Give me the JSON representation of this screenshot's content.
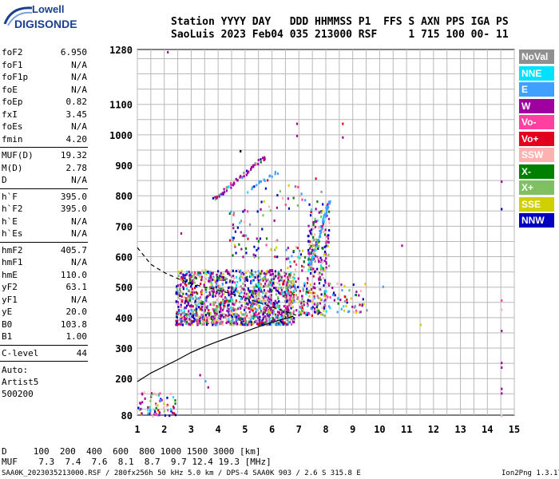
{
  "logo": {
    "top": "Lowell",
    "bottom": "DIGISONDE"
  },
  "header": {
    "line1": "Station YYYY DAY   DDD HHMMSS P1  FFS S AXN PPS IGA PS",
    "line2": "SaoLuis 2023 Feb04 035 213000 RSF     1 715 100 00- 11"
  },
  "params": {
    "g1": [
      {
        "name": "foF2",
        "value": "6.950"
      },
      {
        "name": "foF1",
        "value": "N/A"
      },
      {
        "name": "foF1p",
        "value": "N/A"
      },
      {
        "name": "foE",
        "value": "N/A"
      },
      {
        "name": "foEp",
        "value": "0.82"
      },
      {
        "name": "fxI",
        "value": "3.45"
      },
      {
        "name": "foEs",
        "value": "N/A"
      },
      {
        "name": "fmin",
        "value": "4.20"
      }
    ],
    "g2": [
      {
        "name": "MUF(D)",
        "value": "19.32"
      },
      {
        "name": "M(D)",
        "value": "2.78"
      },
      {
        "name": "D",
        "value": "N/A"
      }
    ],
    "g3": [
      {
        "name": "h`F",
        "value": "395.0"
      },
      {
        "name": "h`F2",
        "value": "395.0"
      },
      {
        "name": "h`E",
        "value": "N/A"
      },
      {
        "name": "h`Es",
        "value": "N/A"
      }
    ],
    "g4": [
      {
        "name": "hmF2",
        "value": "405.7"
      },
      {
        "name": "hmF1",
        "value": "N/A"
      },
      {
        "name": "hmE",
        "value": "110.0"
      },
      {
        "name": "yF2",
        "value": "63.1"
      },
      {
        "name": "yF1",
        "value": "N/A"
      },
      {
        "name": "yE",
        "value": "20.0"
      },
      {
        "name": "B0",
        "value": "103.8"
      },
      {
        "name": "B1",
        "value": "1.00"
      }
    ],
    "g5": [
      {
        "name": "C-level",
        "value": "44"
      }
    ]
  },
  "auto": {
    "line1": "Auto:",
    "line2": "Artist5",
    "line3": "500200"
  },
  "legend": [
    {
      "label": "NoVal",
      "color": "#909090"
    },
    {
      "label": "NNE",
      "color": "#00e0ff"
    },
    {
      "label": "E",
      "color": "#40a0ff"
    },
    {
      "label": "W",
      "color": "#a000a0"
    },
    {
      "label": "Vo-",
      "color": "#ff40a0"
    },
    {
      "label": "Vo+",
      "color": "#e00020"
    },
    {
      "label": "SSW",
      "color": "#ffb0b0"
    },
    {
      "label": "X-",
      "color": "#008000"
    },
    {
      "label": "X+",
      "color": "#80c060"
    },
    {
      "label": "SSE",
      "color": "#d0d000"
    },
    {
      "label": "NNW",
      "color": "#0000c0"
    }
  ],
  "footer": {
    "d_line": "D     100  200  400  600  800 1000 1500 3000 [km]",
    "muf_line": "MUF    7.3  7.4  7.6  8.1  8.7  9.7 12.4 19.3 [MHz]",
    "bottom_left": "SAA0K_2023035213000.RSF / 280fx256h 50 kHz 5.0 km / DPS-4 SAA0K 903 / 2.6 S 315.8 E",
    "bottom_right": "Ion2Png 1.3.17"
  },
  "chart_data": {
    "type": "scatter",
    "title": "",
    "xlabel": "",
    "ylabel": "",
    "xlim": [
      1,
      15
    ],
    "ylim": [
      80,
      1280
    ],
    "x_ticks": [
      "1",
      "2",
      "3",
      "4",
      "5",
      "6",
      "7",
      "8",
      "9",
      "10",
      "11",
      "12",
      "13",
      "14",
      "15"
    ],
    "y_ticks": [
      "80",
      "200",
      "300",
      "400",
      "500",
      "600",
      "700",
      "800",
      "900",
      "1000",
      "1100",
      "1280"
    ],
    "series": [
      {
        "color": "#000000",
        "style": "solid",
        "points": [
          [
            1.0,
            190
          ],
          [
            1.5,
            218
          ],
          [
            2.0,
            240
          ],
          [
            2.5,
            262
          ],
          [
            3.0,
            286
          ],
          [
            3.5,
            305
          ],
          [
            4.0,
            322
          ],
          [
            4.5,
            338
          ],
          [
            5.0,
            354
          ],
          [
            5.5,
            370
          ],
          [
            6.0,
            385
          ],
          [
            6.5,
            397
          ],
          [
            6.8,
            405
          ]
        ]
      },
      {
        "color": "#000000",
        "style": "dashed",
        "points": [
          [
            1.0,
            630
          ],
          [
            1.5,
            575
          ],
          [
            2.0,
            548
          ],
          [
            2.5,
            528
          ],
          [
            3.0,
            512
          ],
          [
            3.5,
            500
          ],
          [
            4.0,
            490
          ],
          [
            4.5,
            478
          ],
          [
            5.0,
            465
          ],
          [
            5.5,
            450
          ],
          [
            6.0,
            435
          ],
          [
            6.5,
            420
          ],
          [
            6.9,
            408
          ]
        ]
      }
    ],
    "echo_clusters": [
      {
        "x": [
          2.4,
          6.8
        ],
        "y": [
          380,
          560
        ],
        "density": 1400
      },
      {
        "x": [
          6.5,
          8.0
        ],
        "y": [
          410,
          640
        ],
        "density": 160
      },
      {
        "x": [
          7.0,
          9.5
        ],
        "y": [
          420,
          520
        ],
        "density": 110
      },
      {
        "x": [
          7.3,
          8.1
        ],
        "y": [
          560,
          780
        ],
        "density": 120
      },
      {
        "x": [
          4.4,
          6.2
        ],
        "y": [
          600,
          760
        ],
        "density": 60
      },
      {
        "x": [
          1.0,
          2.4
        ],
        "y": [
          80,
          160
        ],
        "density": 70
      },
      {
        "x": [
          5.0,
          7.9
        ],
        "y": [
          760,
          840
        ],
        "density": 25
      }
    ],
    "echo_traces": [
      {
        "x": [
          3.8,
          5.7
        ],
        "y": [
          790,
          930
        ],
        "n": 60,
        "color": "#a000a0"
      },
      {
        "x": [
          5.2,
          6.2
        ],
        "y": [
          830,
          880
        ],
        "n": 16,
        "color": "#40a0ff"
      },
      {
        "x": [
          7.4,
          8.1
        ],
        "y": [
          570,
          790
        ],
        "n": 60,
        "color": "#40a0ff"
      }
    ],
    "echo_isolated": [
      [
        2.1,
        1275,
        "#a000a0"
      ],
      [
        4.8,
        950,
        "#000000"
      ],
      [
        6.9,
        1040,
        "#a000a0"
      ],
      [
        6.9,
        1000,
        "#a000a0"
      ],
      [
        8.6,
        1040,
        "#e00020"
      ],
      [
        8.6,
        995,
        "#a000a0"
      ],
      [
        7.6,
        860,
        "#e00020"
      ],
      [
        10.8,
        640,
        "#a000a0"
      ],
      [
        14.5,
        850,
        "#a000a0"
      ],
      [
        14.5,
        760,
        "#0000c0"
      ],
      [
        14.5,
        460,
        "#ff40a0"
      ],
      [
        14.5,
        430,
        "#ffb0b0"
      ],
      [
        14.5,
        360,
        "#a000a0"
      ],
      [
        14.5,
        255,
        "#a000a0"
      ],
      [
        14.5,
        240,
        "#a000a0"
      ],
      [
        14.5,
        170,
        "#a000a0"
      ],
      [
        14.5,
        155,
        "#a000a0"
      ],
      [
        14.5,
        82,
        "#ffb0b0"
      ],
      [
        11.5,
        380,
        "#d0d000"
      ],
      [
        10.1,
        505,
        "#40a0ff"
      ],
      [
        3.3,
        215,
        "#a000a0"
      ],
      [
        3.5,
        195,
        "#40a0ff"
      ],
      [
        3.6,
        175,
        "#a000a0"
      ],
      [
        2.6,
        680,
        "#a000a0"
      ]
    ]
  }
}
